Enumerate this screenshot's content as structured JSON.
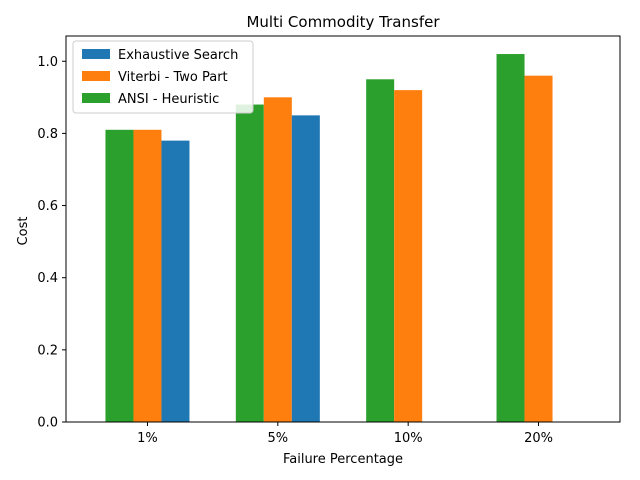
{
  "chart_data": {
    "type": "bar",
    "title": "Multi Commodity Transfer",
    "xlabel": "Failure Percentage",
    "ylabel": "Cost",
    "categories": [
      "1%",
      "5%",
      "10%",
      "20%"
    ],
    "ylim": [
      0,
      1.07
    ],
    "yticks": [
      0.0,
      0.2,
      0.4,
      0.6,
      0.8,
      1.0
    ],
    "ytick_labels": [
      "0.0",
      "0.2",
      "0.4",
      "0.6",
      "0.8",
      "1.0"
    ],
    "grid": false,
    "legend_position": "top-left",
    "series": [
      {
        "name": "ANSI - Heuristic",
        "color": "#2ca02c",
        "values": [
          0.81,
          0.88,
          0.95,
          1.02
        ]
      },
      {
        "name": "Viterbi - Two Part",
        "color": "#ff7f0e",
        "values": [
          0.81,
          0.9,
          0.92,
          0.96
        ]
      },
      {
        "name": "Exhaustive Search",
        "color": "#1f77b4",
        "values": [
          0.78,
          0.85,
          null,
          null
        ]
      }
    ],
    "legend_order": [
      "Exhaustive Search",
      "Viterbi - Two Part",
      "ANSI - Heuristic"
    ]
  }
}
